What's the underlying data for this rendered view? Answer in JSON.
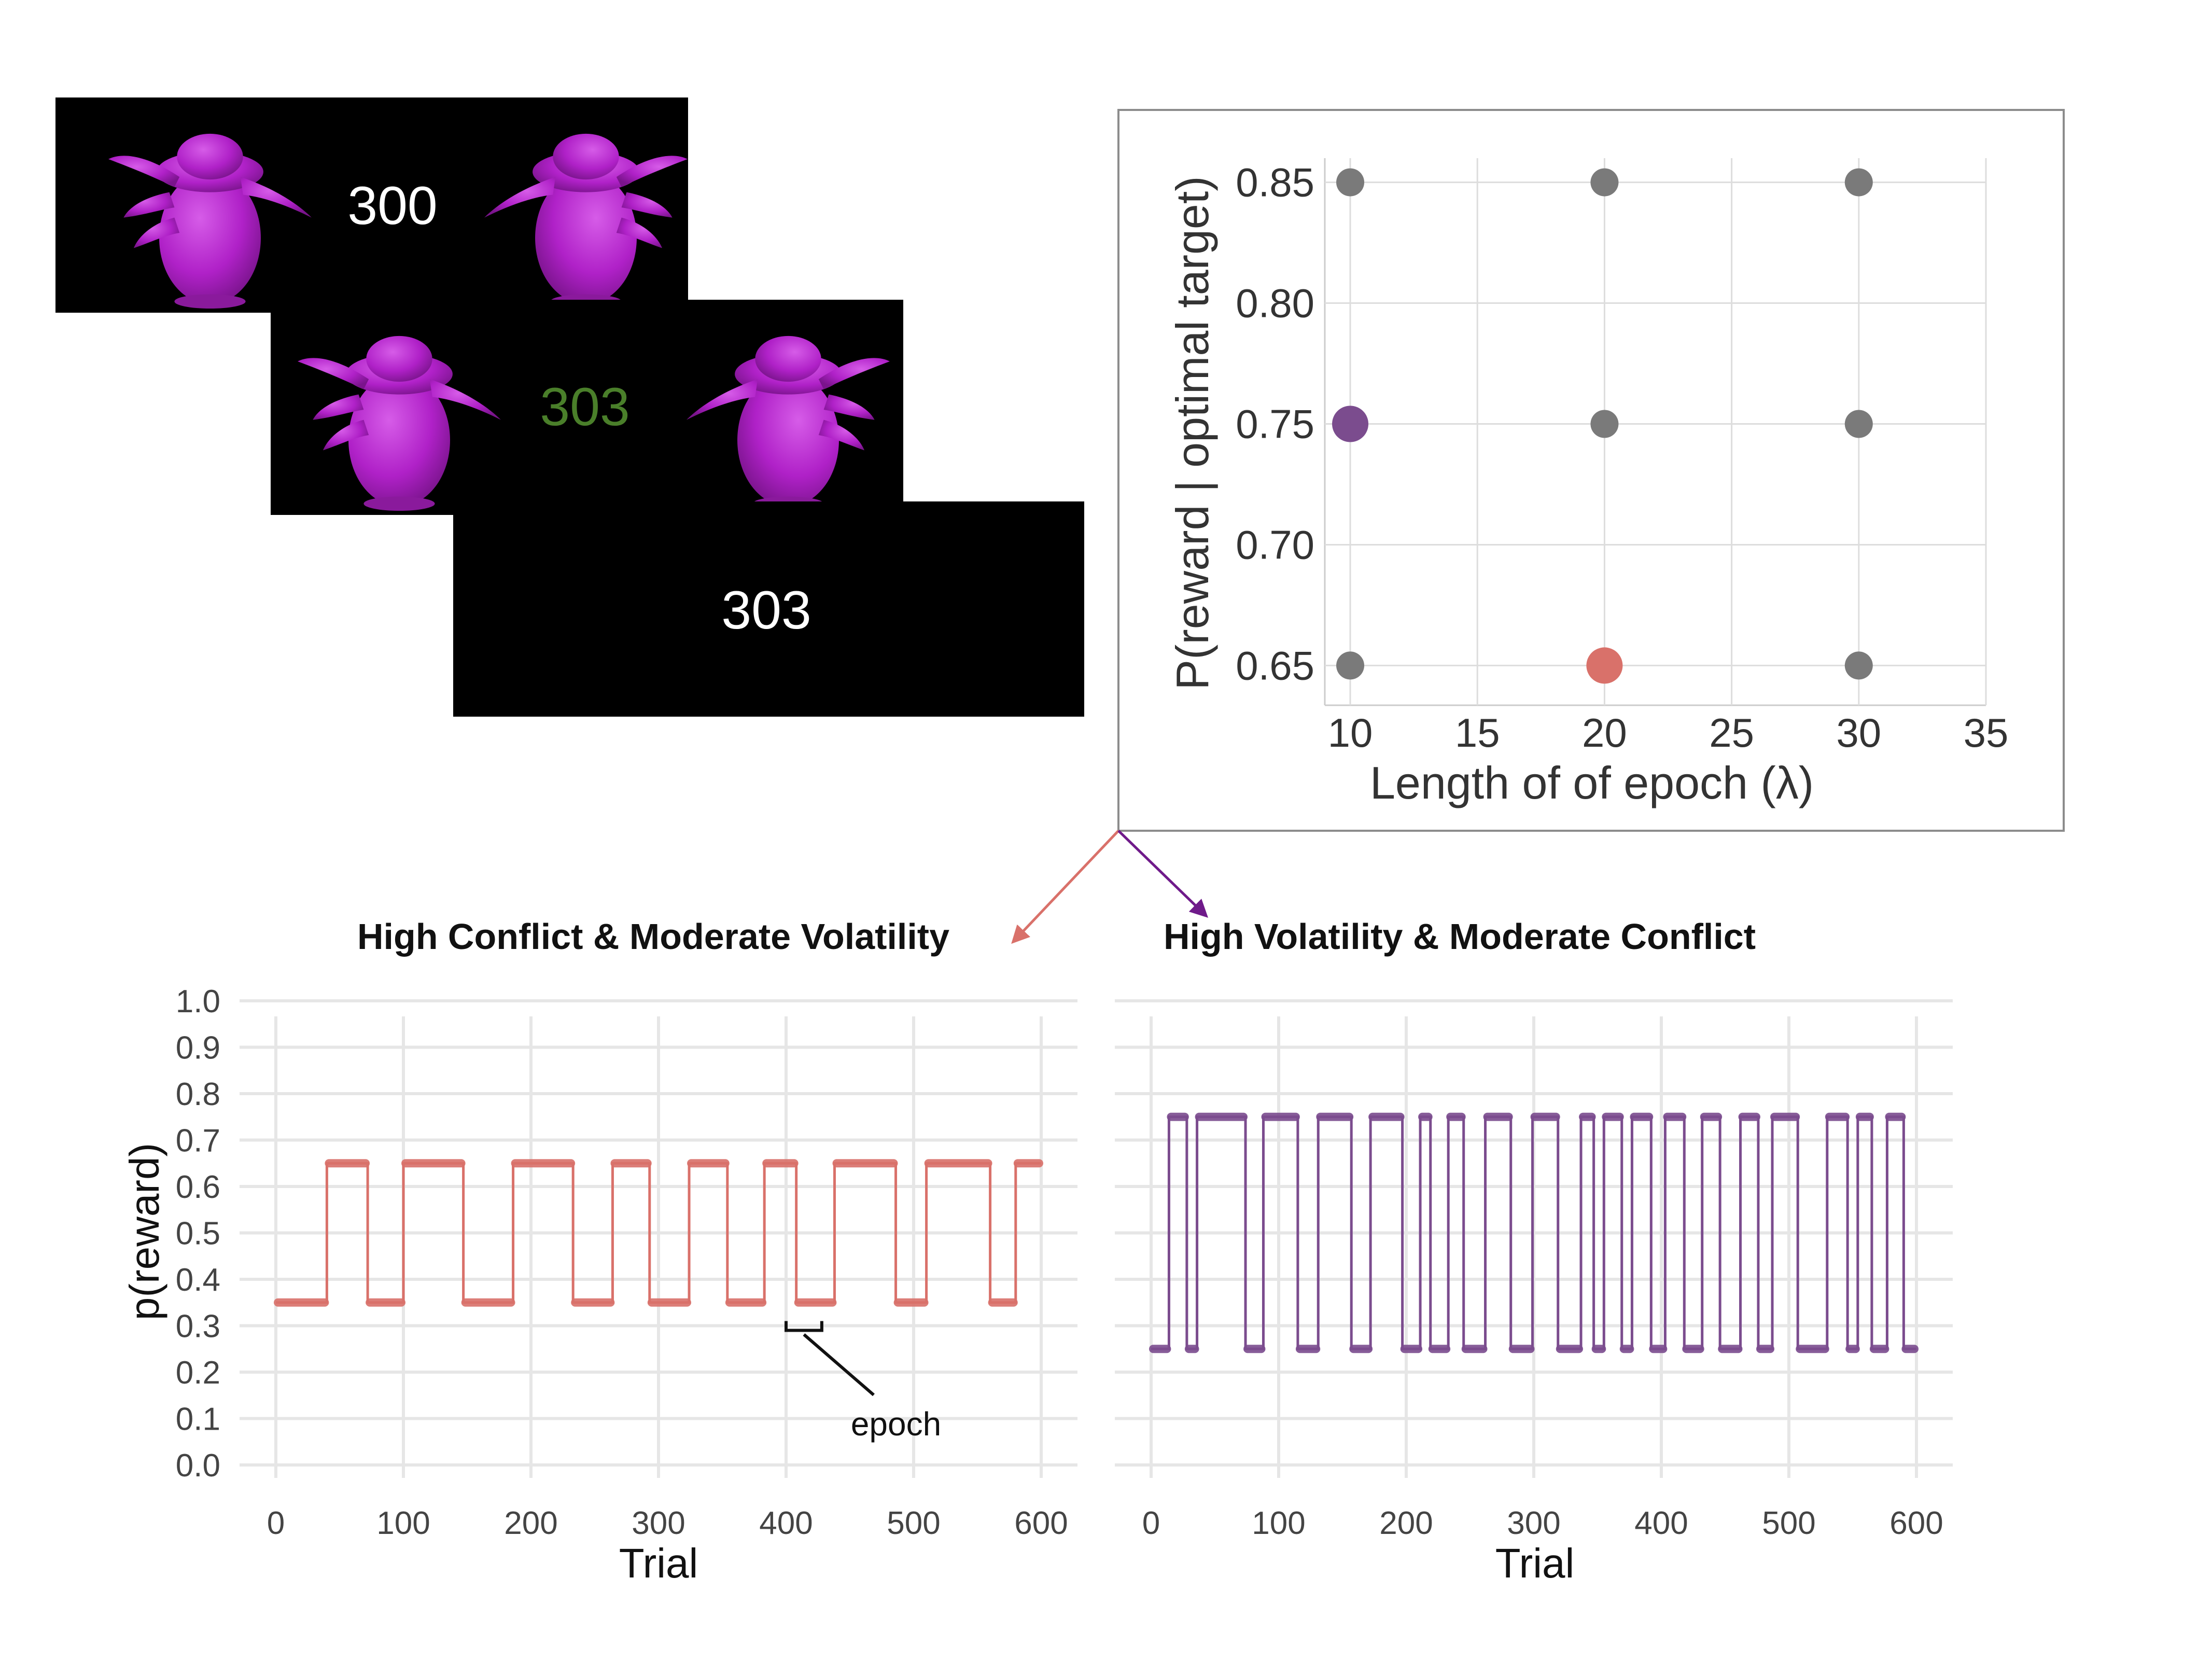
{
  "screens": [
    {
      "number_text": "300",
      "number_color": "#ffffff"
    },
    {
      "number_text": "303",
      "number_color": "#4a7f2a"
    },
    {
      "number_text": "303",
      "number_color": "#ffffff"
    }
  ],
  "stimulus_color": "#b021c8",
  "colors": {
    "high_conflict": "#d9716a",
    "high_volatility": "#7b4c8e",
    "other_condition": "#7a7a7a",
    "grid": "#e6e6e6",
    "axis_text": "#444444"
  },
  "annotation": {
    "epoch_label": "epoch"
  },
  "chart_data": [
    {
      "type": "scatter",
      "title": "",
      "xlabel": "Length of of epoch (λ)",
      "ylabel": "P(reward | optimal target)",
      "xlim": [
        9,
        35
      ],
      "ylim": [
        0.64,
        0.86
      ],
      "x_ticks": [
        "10",
        "15",
        "20",
        "25",
        "30",
        "35"
      ],
      "y_ticks": [
        "0.65",
        "0.70",
        "0.75",
        "0.80",
        "0.85"
      ],
      "grid": true,
      "points": [
        {
          "x": 10,
          "y": 0.85,
          "group": "other"
        },
        {
          "x": 20,
          "y": 0.85,
          "group": "other"
        },
        {
          "x": 30,
          "y": 0.85,
          "group": "other"
        },
        {
          "x": 10,
          "y": 0.75,
          "group": "high_volatility"
        },
        {
          "x": 20,
          "y": 0.75,
          "group": "other"
        },
        {
          "x": 30,
          "y": 0.75,
          "group": "other"
        },
        {
          "x": 10,
          "y": 0.65,
          "group": "other"
        },
        {
          "x": 20,
          "y": 0.65,
          "group": "high_conflict"
        },
        {
          "x": 30,
          "y": 0.65,
          "group": "other"
        }
      ]
    },
    {
      "type": "line",
      "title": "High Conflict & Moderate Volatility",
      "xlabel": "Trial",
      "ylabel": "p(reward)",
      "xlim": [
        0,
        600
      ],
      "ylim": [
        0,
        1
      ],
      "x_ticks": [
        "0",
        "100",
        "200",
        "300",
        "400",
        "500",
        "600"
      ],
      "y_ticks": [
        "0.0",
        "0.1",
        "0.2",
        "0.3",
        "0.4",
        "0.5",
        "0.6",
        "0.7",
        "0.8",
        "0.9",
        "1.0"
      ],
      "grid": true,
      "low_value": 0.35,
      "high_value": 0.65,
      "series": [
        {
          "segments": [
            {
              "start": 0,
              "end": 40,
              "value": 0.35
            },
            {
              "start": 40,
              "end": 72,
              "value": 0.65
            },
            {
              "start": 72,
              "end": 100,
              "value": 0.35
            },
            {
              "start": 100,
              "end": 147,
              "value": 0.65
            },
            {
              "start": 147,
              "end": 186,
              "value": 0.35
            },
            {
              "start": 186,
              "end": 233,
              "value": 0.65
            },
            {
              "start": 233,
              "end": 264,
              "value": 0.35
            },
            {
              "start": 264,
              "end": 293,
              "value": 0.65
            },
            {
              "start": 293,
              "end": 324,
              "value": 0.35
            },
            {
              "start": 324,
              "end": 354,
              "value": 0.65
            },
            {
              "start": 354,
              "end": 383,
              "value": 0.35
            },
            {
              "start": 383,
              "end": 408,
              "value": 0.65
            },
            {
              "start": 408,
              "end": 438,
              "value": 0.35
            },
            {
              "start": 438,
              "end": 486,
              "value": 0.65
            },
            {
              "start": 486,
              "end": 510,
              "value": 0.35
            },
            {
              "start": 510,
              "end": 560,
              "value": 0.65
            },
            {
              "start": 560,
              "end": 580,
              "value": 0.35
            },
            {
              "start": 580,
              "end": 600,
              "value": 0.65
            }
          ]
        }
      ],
      "epoch_bracket": {
        "start": 400,
        "end": 428,
        "y": 0.29
      }
    },
    {
      "type": "line",
      "title": "High Volatility & Moderate Conflict",
      "xlabel": "Trial",
      "ylabel": "",
      "xlim": [
        0,
        600
      ],
      "ylim": [
        0,
        1
      ],
      "x_ticks": [
        "0",
        "100",
        "200",
        "300",
        "400",
        "500",
        "600"
      ],
      "y_ticks": [],
      "grid": true,
      "low_value": 0.25,
      "high_value": 0.75,
      "series": [
        {
          "segments": [
            {
              "start": 0,
              "end": 14,
              "value": 0.25
            },
            {
              "start": 14,
              "end": 28,
              "value": 0.75
            },
            {
              "start": 28,
              "end": 36,
              "value": 0.25
            },
            {
              "start": 36,
              "end": 74,
              "value": 0.75
            },
            {
              "start": 74,
              "end": 88,
              "value": 0.25
            },
            {
              "start": 88,
              "end": 115,
              "value": 0.75
            },
            {
              "start": 115,
              "end": 131,
              "value": 0.25
            },
            {
              "start": 131,
              "end": 157,
              "value": 0.75
            },
            {
              "start": 157,
              "end": 172,
              "value": 0.25
            },
            {
              "start": 172,
              "end": 197,
              "value": 0.75
            },
            {
              "start": 197,
              "end": 211,
              "value": 0.25
            },
            {
              "start": 211,
              "end": 219,
              "value": 0.75
            },
            {
              "start": 219,
              "end": 233,
              "value": 0.25
            },
            {
              "start": 233,
              "end": 245,
              "value": 0.75
            },
            {
              "start": 245,
              "end": 262,
              "value": 0.25
            },
            {
              "start": 262,
              "end": 282,
              "value": 0.75
            },
            {
              "start": 282,
              "end": 299,
              "value": 0.25
            },
            {
              "start": 299,
              "end": 319,
              "value": 0.75
            },
            {
              "start": 319,
              "end": 337,
              "value": 0.25
            },
            {
              "start": 337,
              "end": 347,
              "value": 0.75
            },
            {
              "start": 347,
              "end": 355,
              "value": 0.25
            },
            {
              "start": 355,
              "end": 369,
              "value": 0.75
            },
            {
              "start": 369,
              "end": 377,
              "value": 0.25
            },
            {
              "start": 377,
              "end": 392,
              "value": 0.75
            },
            {
              "start": 392,
              "end": 403,
              "value": 0.25
            },
            {
              "start": 403,
              "end": 418,
              "value": 0.75
            },
            {
              "start": 418,
              "end": 432,
              "value": 0.25
            },
            {
              "start": 432,
              "end": 446,
              "value": 0.75
            },
            {
              "start": 446,
              "end": 462,
              "value": 0.25
            },
            {
              "start": 462,
              "end": 476,
              "value": 0.75
            },
            {
              "start": 476,
              "end": 487,
              "value": 0.25
            },
            {
              "start": 487,
              "end": 507,
              "value": 0.75
            },
            {
              "start": 507,
              "end": 530,
              "value": 0.25
            },
            {
              "start": 530,
              "end": 546,
              "value": 0.75
            },
            {
              "start": 546,
              "end": 554,
              "value": 0.25
            },
            {
              "start": 554,
              "end": 565,
              "value": 0.75
            },
            {
              "start": 565,
              "end": 577,
              "value": 0.25
            },
            {
              "start": 577,
              "end": 590,
              "value": 0.75
            },
            {
              "start": 590,
              "end": 600,
              "value": 0.25
            }
          ]
        }
      ]
    }
  ]
}
